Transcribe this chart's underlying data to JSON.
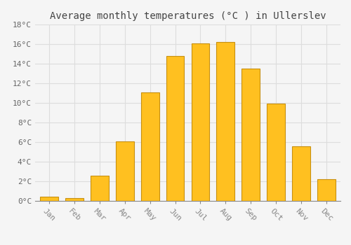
{
  "title": "Average monthly temperatures (°C ) in Ullerslev",
  "months": [
    "Jan",
    "Feb",
    "Mar",
    "Apr",
    "May",
    "Jun",
    "Jul",
    "Aug",
    "Sep",
    "Oct",
    "Nov",
    "Dec"
  ],
  "temperatures": [
    0.4,
    0.3,
    2.6,
    6.1,
    11.1,
    14.8,
    16.1,
    16.2,
    13.5,
    9.9,
    5.6,
    2.2
  ],
  "bar_color": "#FFC020",
  "bar_edge_color": "#C89010",
  "background_color": "#F5F5F5",
  "grid_color": "#DDDDDD",
  "title_color": "#444444",
  "tick_label_color": "#666666",
  "ylim": [
    0,
    18
  ],
  "yticks": [
    0,
    2,
    4,
    6,
    8,
    10,
    12,
    14,
    16,
    18
  ],
  "ytick_labels": [
    "0°C",
    "2°C",
    "4°C",
    "6°C",
    "8°C",
    "10°C",
    "12°C",
    "14°C",
    "16°C",
    "18°C"
  ],
  "title_fontsize": 10,
  "tick_fontsize": 8,
  "font_family": "monospace"
}
